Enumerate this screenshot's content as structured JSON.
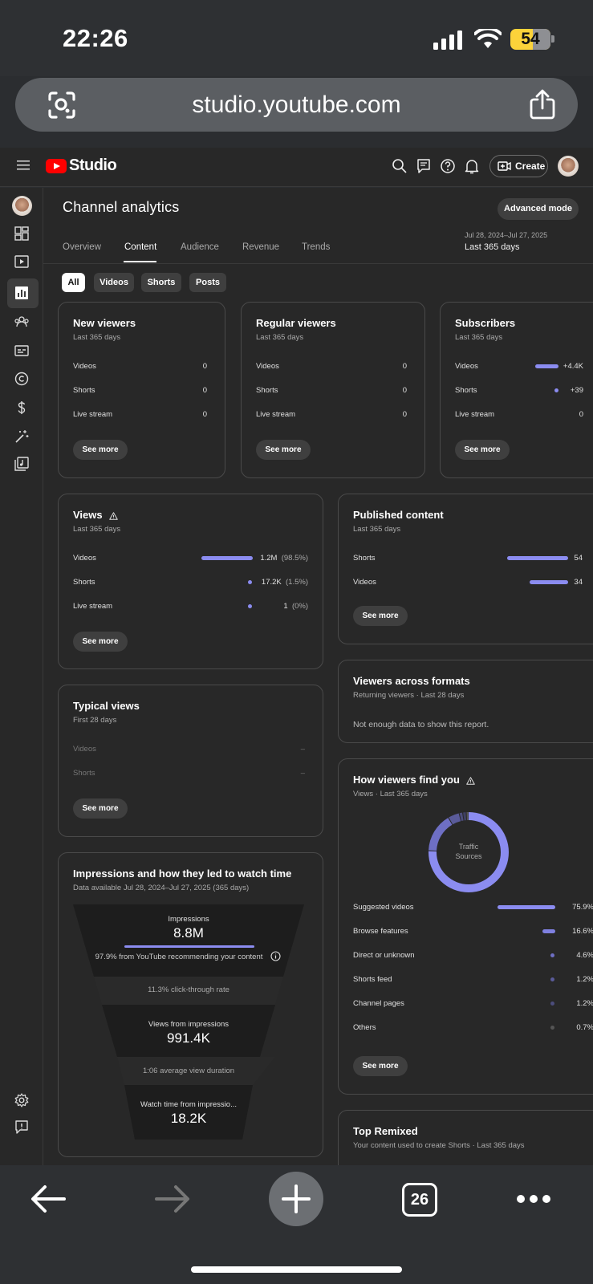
{
  "status_bar": {
    "time": "22:26",
    "battery": "54"
  },
  "browser": {
    "url": "studio.youtube.com",
    "tab_count": "26"
  },
  "header": {
    "brand": "Studio",
    "create_label": "Create"
  },
  "page": {
    "title": "Channel analytics",
    "advanced_mode_label": "Advanced mode",
    "tabs": [
      {
        "label": "Overview"
      },
      {
        "label": "Content"
      },
      {
        "label": "Audience"
      },
      {
        "label": "Revenue"
      },
      {
        "label": "Trends"
      }
    ],
    "date_range": {
      "dates": "Jul 28, 2024–Jul 27, 2025",
      "label": "Last 365 days"
    },
    "filter_chips": [
      {
        "label": "All",
        "selected": true
      },
      {
        "label": "Videos",
        "selected": false
      },
      {
        "label": "Shorts",
        "selected": false
      },
      {
        "label": "Posts",
        "selected": false
      }
    ]
  },
  "cards": {
    "new_viewers": {
      "title": "New viewers",
      "subtitle": "Last 365 days",
      "rows": [
        {
          "label": "Videos",
          "value": "0"
        },
        {
          "label": "Shorts",
          "value": "0"
        },
        {
          "label": "Live stream",
          "value": "0"
        }
      ],
      "see_more": "See more"
    },
    "regular_viewers": {
      "title": "Regular viewers",
      "subtitle": "Last 365 days",
      "rows": [
        {
          "label": "Videos",
          "value": "0"
        },
        {
          "label": "Shorts",
          "value": "0"
        },
        {
          "label": "Live stream",
          "value": "0"
        }
      ],
      "see_more": "See more"
    },
    "subscribers": {
      "title": "Subscribers",
      "subtitle": "Last 365 days",
      "rows": [
        {
          "label": "Videos",
          "value": "+4.4K"
        },
        {
          "label": "Shorts",
          "value": "+39"
        },
        {
          "label": "Live stream",
          "value": "0"
        }
      ],
      "see_more": "See more"
    },
    "views": {
      "title": "Views",
      "subtitle": "Last 365 days",
      "rows": [
        {
          "label": "Videos",
          "value": "1.2M",
          "pct": "(98.5%)"
        },
        {
          "label": "Shorts",
          "value": "17.2K",
          "pct": "(1.5%)"
        },
        {
          "label": "Live stream",
          "value": "1",
          "pct": "(0%)"
        }
      ],
      "see_more": "See more"
    },
    "published_content": {
      "title": "Published content",
      "subtitle": "Last 365 days",
      "rows": [
        {
          "label": "Shorts",
          "value": "54"
        },
        {
          "label": "Videos",
          "value": "34"
        }
      ],
      "see_more": "See more"
    },
    "viewers_across_formats": {
      "title": "Viewers across formats",
      "subtitle": "Returning viewers · Last 28 days",
      "message": "Not enough data to show this report."
    },
    "typical_views": {
      "title": "Typical views",
      "subtitle": "First 28 days",
      "rows": [
        {
          "label": "Videos",
          "value": "–"
        },
        {
          "label": "Shorts",
          "value": "–"
        }
      ],
      "see_more": "See more"
    },
    "how_viewers_find_you": {
      "title": "How viewers find you",
      "subtitle": "Views · Last 365 days",
      "donut_label_1": "Traffic",
      "donut_label_2": "Sources",
      "sources": [
        {
          "label": "Suggested videos",
          "value": "75.9%"
        },
        {
          "label": "Browse features",
          "value": "16.6%"
        },
        {
          "label": "Direct or unknown",
          "value": "4.6%"
        },
        {
          "label": "Shorts feed",
          "value": "1.2%"
        },
        {
          "label": "Channel pages",
          "value": "1.2%"
        },
        {
          "label": "Others",
          "value": "0.7%"
        }
      ],
      "see_more": "See more"
    },
    "impressions": {
      "title": "Impressions and how they led to watch time",
      "subtitle": "Data available Jul 28, 2024–Jul 27, 2025 (365 days)",
      "impressions_label": "Impressions",
      "impressions_value": "8.8M",
      "impressions_note": "97.9% from YouTube recommending your content",
      "ctr": "11.3% click-through rate",
      "views_label": "Views from impressions",
      "views_value": "991.4K",
      "avg_duration": "1:06 average view duration",
      "watch_label": "Watch time from impressio...",
      "watch_value": "18.2K"
    },
    "top_remixed": {
      "title": "Top Remixed",
      "subtitle": "Your content used to create Shorts · Last 365 days"
    }
  },
  "colors": {
    "accent": "#8b8cf0",
    "background": "#282828",
    "card_border": "#4a4a4a",
    "brand_red": "#ff0000"
  }
}
